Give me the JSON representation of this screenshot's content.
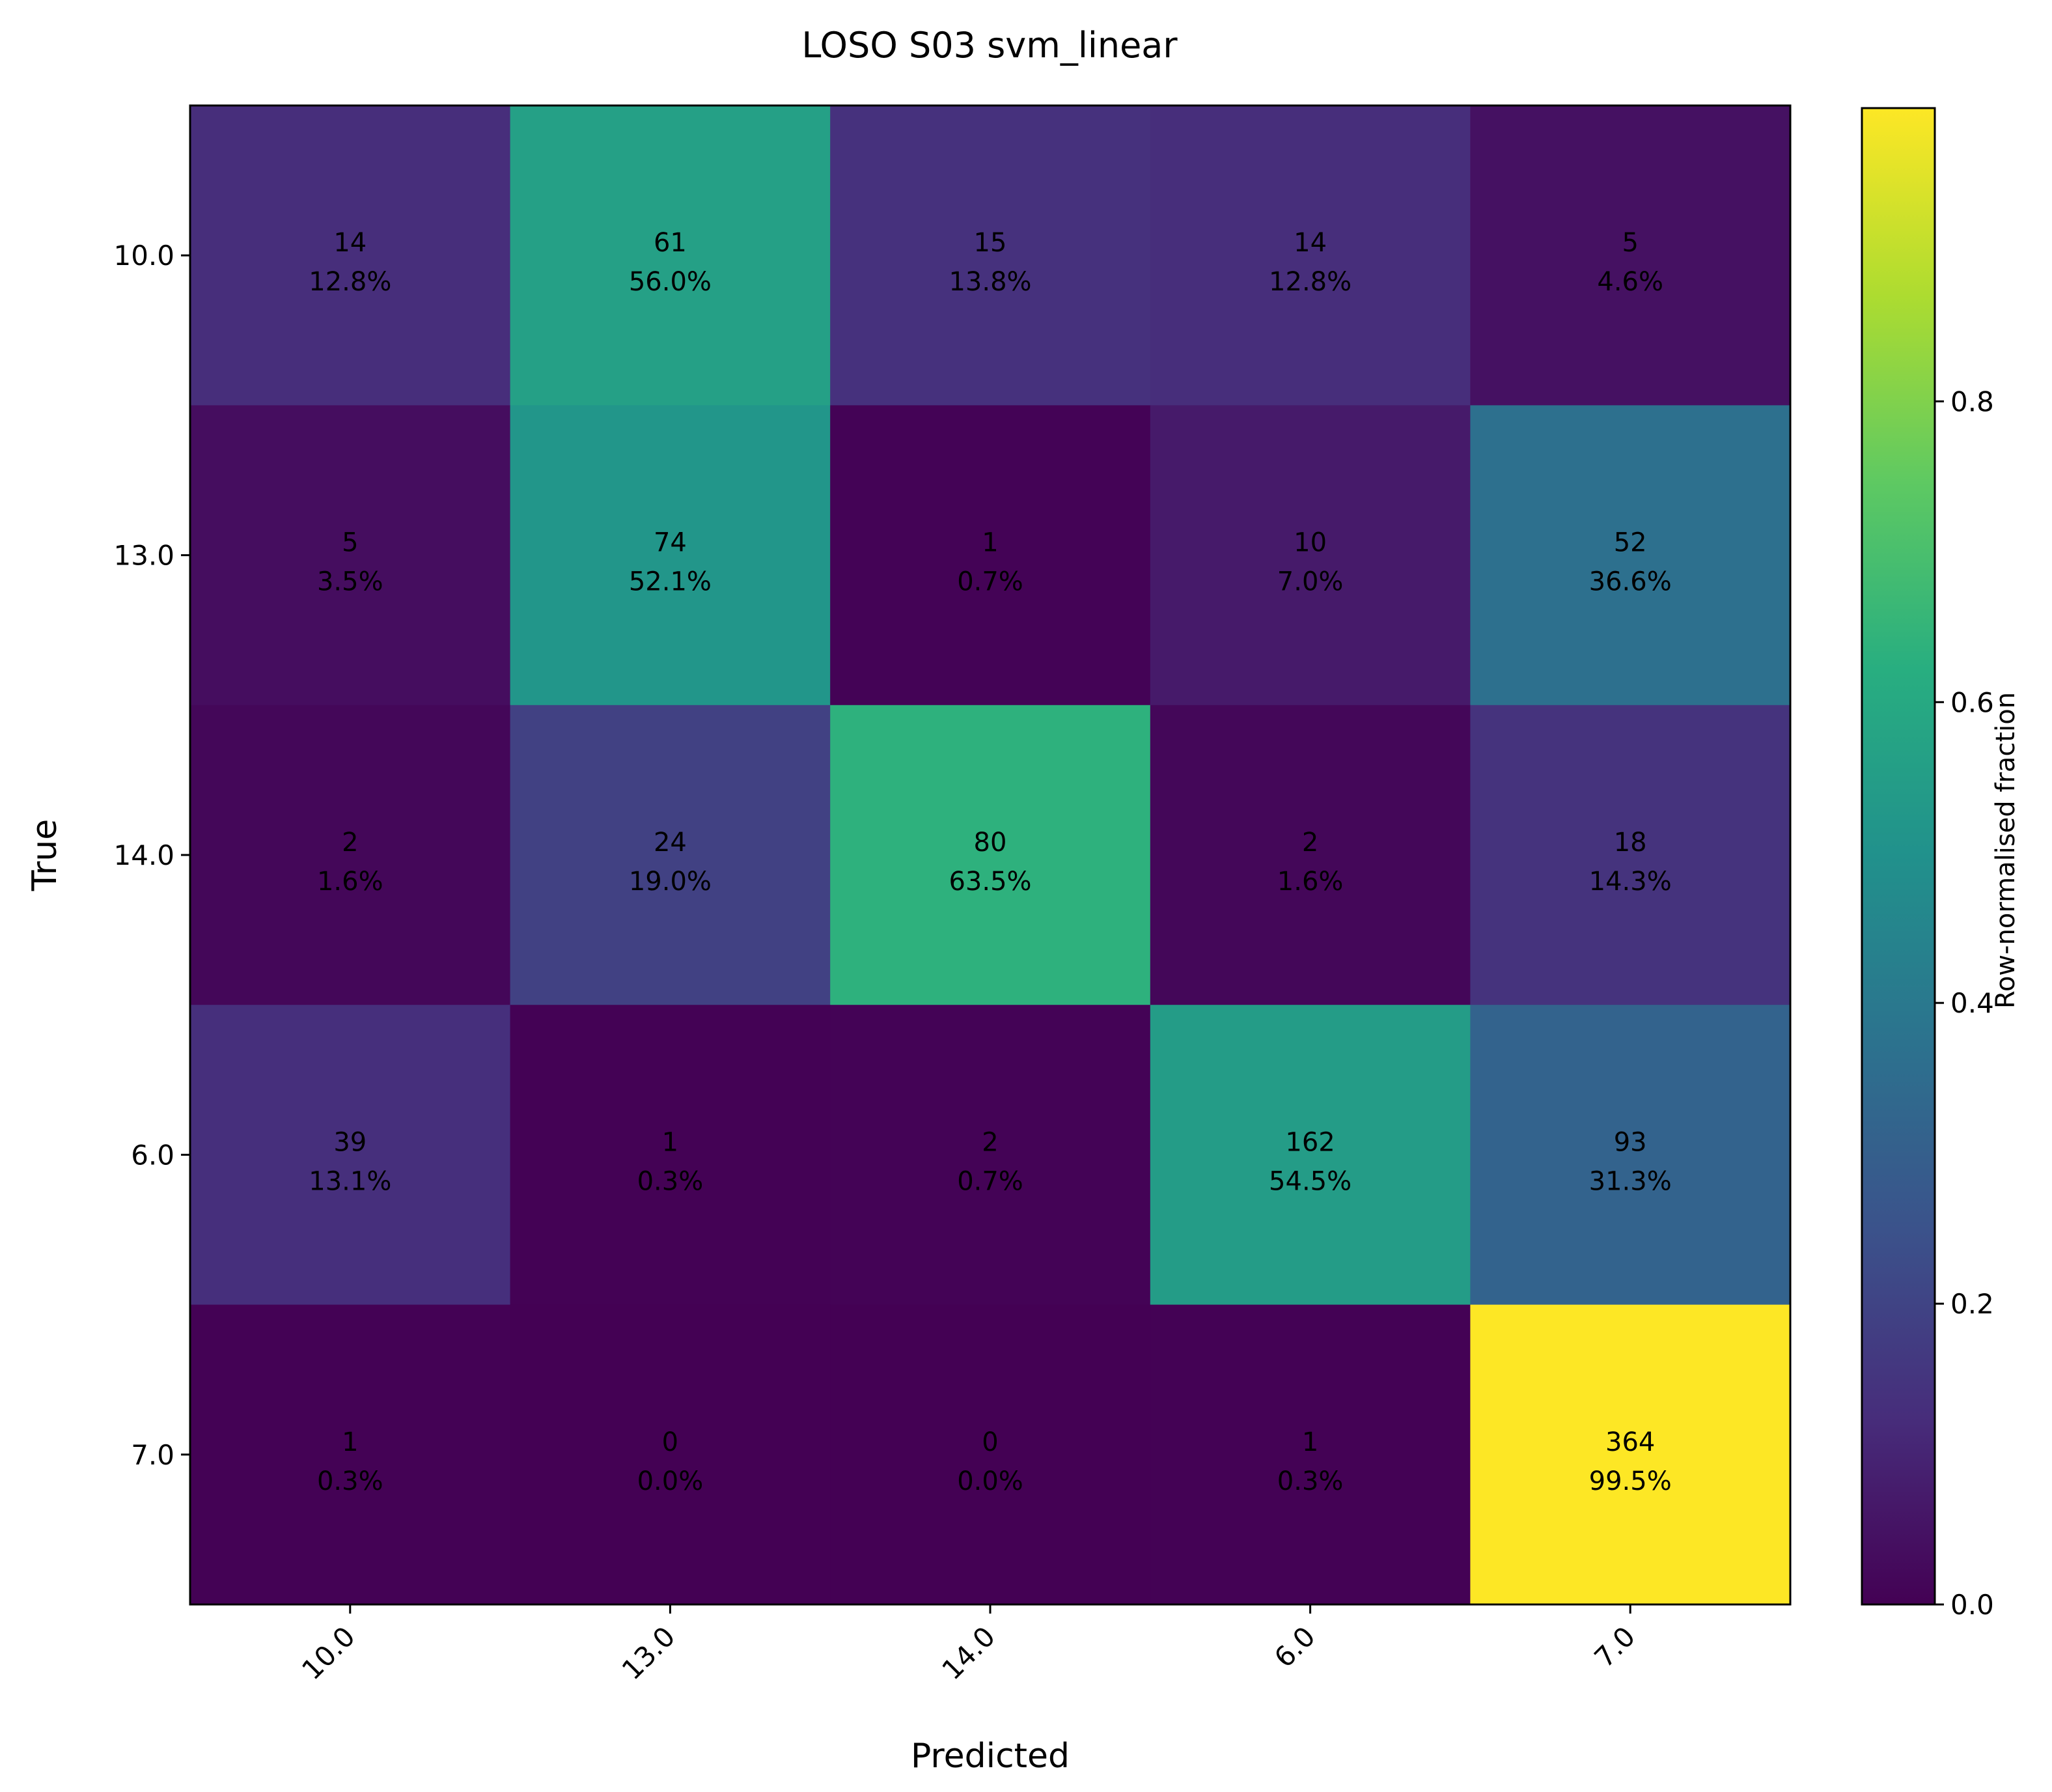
{
  "chart_data": {
    "type": "heatmap",
    "title": "LOSO S03 svm_linear",
    "xlabel": "Predicted",
    "ylabel": "True",
    "x_categories": [
      "10.0",
      "13.0",
      "14.0",
      "6.0",
      "7.0"
    ],
    "y_categories": [
      "10.0",
      "13.0",
      "14.0",
      "6.0",
      "7.0"
    ],
    "counts": [
      [
        14,
        61,
        15,
        14,
        5
      ],
      [
        5,
        74,
        1,
        10,
        52
      ],
      [
        2,
        24,
        80,
        2,
        18
      ],
      [
        39,
        1,
        2,
        162,
        93
      ],
      [
        1,
        0,
        0,
        1,
        364
      ]
    ],
    "percent_labels": [
      [
        "12.8%",
        "56.0%",
        "13.8%",
        "12.8%",
        "4.6%"
      ],
      [
        "3.5%",
        "52.1%",
        "0.7%",
        "7.0%",
        "36.6%"
      ],
      [
        "1.6%",
        "19.0%",
        "63.5%",
        "1.6%",
        "14.3%"
      ],
      [
        "13.1%",
        "0.3%",
        "0.7%",
        "54.5%",
        "31.3%"
      ],
      [
        "0.3%",
        "0.0%",
        "0.0%",
        "0.3%",
        "99.5%"
      ]
    ],
    "fractions": [
      [
        0.128,
        0.56,
        0.138,
        0.128,
        0.046
      ],
      [
        0.035,
        0.521,
        0.007,
        0.07,
        0.366
      ],
      [
        0.016,
        0.19,
        0.635,
        0.016,
        0.143
      ],
      [
        0.131,
        0.003,
        0.007,
        0.545,
        0.313
      ],
      [
        0.003,
        0.0,
        0.0,
        0.003,
        0.995
      ]
    ],
    "colorbar": {
      "label": "Row-normalised fraction",
      "range": [
        0,
        0.995
      ],
      "ticks": [
        "0.0",
        "0.2",
        "0.4",
        "0.6",
        "0.8"
      ],
      "colormap": "viridis"
    }
  }
}
